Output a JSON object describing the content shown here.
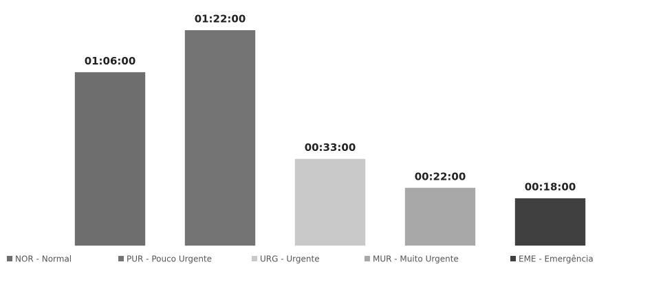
{
  "chart_data": {
    "type": "bar",
    "categories": [
      "NOR - Normal",
      "PUR - Pouco Urgente",
      "URG - Urgente",
      "MUR - Muito Urgente",
      "EME - Emergência"
    ],
    "values": [
      66,
      82,
      33,
      22,
      18
    ],
    "value_labels": [
      "01:06:00",
      "01:22:00",
      "00:33:00",
      "00:22:00",
      "00:18:00"
    ],
    "colors": [
      "#6e6e6e",
      "#747474",
      "#c9c9c9",
      "#a8a8a8",
      "#404040"
    ],
    "legend": "bottom"
  }
}
